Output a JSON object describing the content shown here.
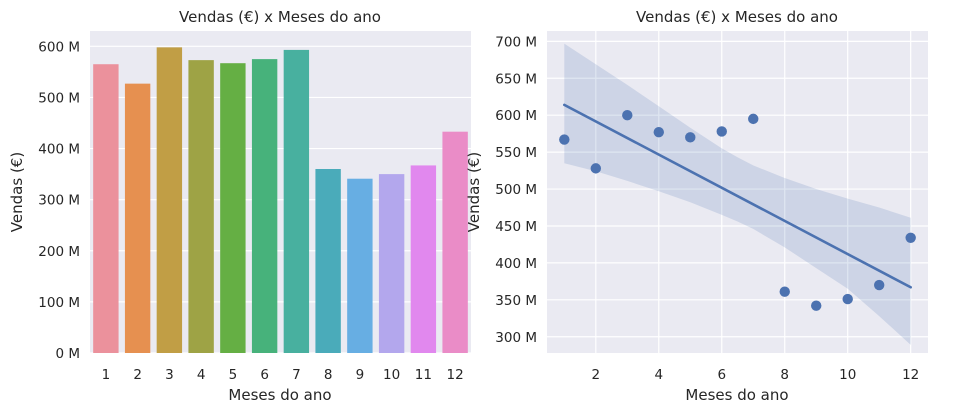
{
  "chart_data": [
    {
      "type": "bar",
      "title": "Vendas (€) x Meses do ano",
      "xlabel": "Meses do ano",
      "ylabel": "Vendas (€)",
      "categories": [
        "1",
        "2",
        "3",
        "4",
        "5",
        "6",
        "7",
        "8",
        "9",
        "10",
        "11",
        "12"
      ],
      "values": [
        565,
        527,
        598,
        573,
        567,
        575,
        593,
        360,
        341,
        350,
        367,
        433
      ],
      "value_unit": "M",
      "ylim": [
        0,
        630
      ],
      "yticks": [
        {
          "value": 0,
          "label": "0 M"
        },
        {
          "value": 100,
          "label": "100 M"
        },
        {
          "value": 200,
          "label": "200 M"
        },
        {
          "value": 300,
          "label": "300 M"
        },
        {
          "value": 400,
          "label": "400 M"
        },
        {
          "value": 500,
          "label": "500 M"
        },
        {
          "value": 600,
          "label": "600 M"
        }
      ],
      "colors": [
        "#eb919c",
        "#e69050",
        "#c19e45",
        "#9ea345",
        "#65af44",
        "#47b27b",
        "#48b09f",
        "#4aabba",
        "#67aee3",
        "#b3a7ed",
        "#e188ee",
        "#ea8cc7"
      ],
      "grid": true,
      "background": "#eaeaf2"
    },
    {
      "type": "scatter",
      "title": "Vendas (€) x Meses do ano",
      "xlabel": "Meses do ano",
      "ylabel": "Vendas (€)",
      "x": [
        1,
        2,
        3,
        4,
        5,
        6,
        7,
        8,
        9,
        10,
        11,
        12
      ],
      "y": [
        567,
        528,
        600,
        577,
        570,
        578,
        595,
        361,
        342,
        351,
        370,
        434
      ],
      "value_unit": "M",
      "regression": {
        "x": [
          1,
          12
        ],
        "y": [
          614,
          367
        ]
      },
      "confidence_band": {
        "x": [
          1,
          2,
          3,
          4,
          5,
          6,
          6.5,
          7,
          8,
          9,
          10,
          11,
          12
        ],
        "upper": [
          697,
          669,
          641,
          612,
          583,
          555,
          543,
          532,
          515,
          500,
          487,
          475,
          461
        ],
        "lower": [
          535,
          524,
          511,
          497,
          482,
          465,
          456,
          446,
          421,
          393,
          365,
          328,
          289
        ]
      },
      "xlim": [
        0.45,
        12.55
      ],
      "ylim": [
        278,
        714
      ],
      "xticks": [
        {
          "value": 2,
          "label": "2"
        },
        {
          "value": 4,
          "label": "4"
        },
        {
          "value": 6,
          "label": "6"
        },
        {
          "value": 8,
          "label": "8"
        },
        {
          "value": 10,
          "label": "10"
        },
        {
          "value": 12,
          "label": "12"
        }
      ],
      "yticks": [
        {
          "value": 300,
          "label": "300 M"
        },
        {
          "value": 350,
          "label": "350 M"
        },
        {
          "value": 400,
          "label": "400 M"
        },
        {
          "value": 450,
          "label": "450 M"
        },
        {
          "value": 500,
          "label": "500 M"
        },
        {
          "value": 550,
          "label": "550 M"
        },
        {
          "value": 600,
          "label": "600 M"
        },
        {
          "value": 650,
          "label": "650 M"
        },
        {
          "value": 700,
          "label": "700 M"
        }
      ],
      "color": "#4c72b0",
      "grid": true,
      "background": "#eaeaf2"
    }
  ]
}
